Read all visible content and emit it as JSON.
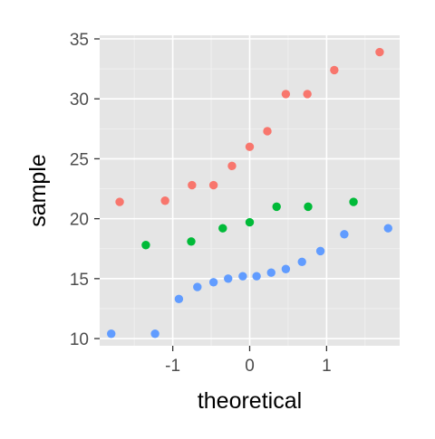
{
  "chart_data": {
    "type": "scatter",
    "title": "",
    "xlabel": "theoretical",
    "ylabel": "sample",
    "xlim": [
      -1.95,
      1.95
    ],
    "ylim": [
      9.4,
      35.3
    ],
    "x_ticks": [
      -1,
      0,
      1
    ],
    "x_tick_labels": [
      "-1",
      "0",
      "1"
    ],
    "y_ticks": [
      10,
      15,
      20,
      25,
      30,
      35
    ],
    "y_tick_labels": [
      "10",
      "15",
      "20",
      "25",
      "30",
      "35"
    ],
    "grid": true,
    "legend": "none",
    "colors": {
      "panel_background": "#E5E5E5",
      "grid_major": "#FFFFFF",
      "grid_minor": "#F2F2F2",
      "axis_text": "#4D4D4D",
      "axis_title": "#000000",
      "tick_mark": "#333333"
    },
    "series": [
      {
        "color": "#F8766D",
        "points": [
          {
            "x": -1.69,
            "y": 21.4
          },
          {
            "x": -1.1,
            "y": 21.5
          },
          {
            "x": -0.75,
            "y": 22.8
          },
          {
            "x": -0.47,
            "y": 22.8
          },
          {
            "x": -0.23,
            "y": 24.4
          },
          {
            "x": 0.0,
            "y": 26.0
          },
          {
            "x": 0.23,
            "y": 27.3
          },
          {
            "x": 0.47,
            "y": 30.4
          },
          {
            "x": 0.75,
            "y": 30.4
          },
          {
            "x": 1.1,
            "y": 32.4
          },
          {
            "x": 1.69,
            "y": 33.9
          }
        ]
      },
      {
        "color": "#00BA38",
        "points": [
          {
            "x": -1.35,
            "y": 17.8
          },
          {
            "x": -0.76,
            "y": 18.1
          },
          {
            "x": -0.35,
            "y": 19.2
          },
          {
            "x": 0.0,
            "y": 19.7
          },
          {
            "x": 0.35,
            "y": 21.0
          },
          {
            "x": 0.76,
            "y": 21.0
          },
          {
            "x": 1.35,
            "y": 21.4
          }
        ]
      },
      {
        "color": "#619CFF",
        "points": [
          {
            "x": -1.8,
            "y": 10.4
          },
          {
            "x": -1.23,
            "y": 10.4
          },
          {
            "x": -0.92,
            "y": 13.3
          },
          {
            "x": -0.68,
            "y": 14.3
          },
          {
            "x": -0.47,
            "y": 14.7
          },
          {
            "x": -0.28,
            "y": 15.0
          },
          {
            "x": -0.09,
            "y": 15.2
          },
          {
            "x": 0.09,
            "y": 15.2
          },
          {
            "x": 0.28,
            "y": 15.5
          },
          {
            "x": 0.47,
            "y": 15.8
          },
          {
            "x": 0.68,
            "y": 16.4
          },
          {
            "x": 0.92,
            "y": 17.3
          },
          {
            "x": 1.23,
            "y": 18.7
          },
          {
            "x": 1.8,
            "y": 19.2
          }
        ]
      }
    ]
  }
}
